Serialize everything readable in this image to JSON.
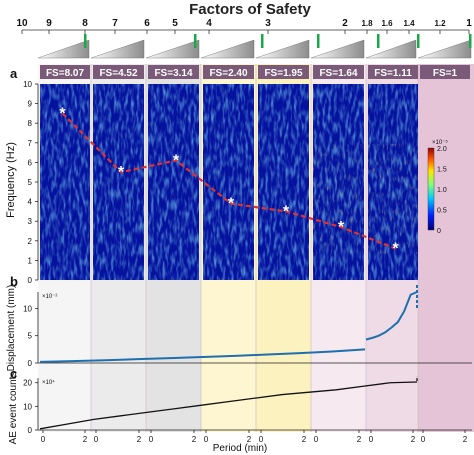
{
  "figure": {
    "title": "Factors of Safety",
    "scale_ticks": [
      "10",
      "9",
      "8",
      "7",
      "6",
      "5",
      "4",
      "3",
      "2",
      "1.8",
      "1.6",
      "1.4",
      "1.2",
      "1"
    ],
    "panel_letters": [
      "a",
      "b",
      "c"
    ],
    "shade_colors": [
      "#f5f5f5",
      "#ebebeb",
      "#e3e3e3",
      "#fdf6d0",
      "#fbf2c0",
      "#f6e9ef",
      "#efdbe6",
      "#e4c4d6"
    ],
    "label_bg": "#7a5a78",
    "trend_color": "#e0322e",
    "series_color": "#1f6fae"
  },
  "chart_data": [
    {
      "type": "heatmap",
      "panel": "a",
      "ylabel": "Frequency (Hz)",
      "ylim": [
        0,
        10
      ],
      "yticks": [
        "0",
        "1",
        "2",
        "3",
        "4",
        "5",
        "6",
        "7",
        "8",
        "9",
        "10"
      ],
      "segments": [
        "FS=8.07",
        "FS=4.52",
        "FS=3.14",
        "FS=2.40",
        "FS=1.95",
        "FS=1.64",
        "FS=1.11",
        "FS=1"
      ],
      "colorbar": {
        "ticks": [
          "0",
          "0.5",
          "1.0",
          "1.5",
          "2.0"
        ],
        "exponent": "×10⁻⁵"
      },
      "peak_frequency_trend": [
        {
          "segment": "FS=8.07",
          "frequency": 8.5
        },
        {
          "segment": "FS=4.52",
          "frequency": 5.5
        },
        {
          "segment": "FS=3.14",
          "frequency": 6.1
        },
        {
          "segment": "FS=2.40",
          "frequency": 3.9
        },
        {
          "segment": "FS=1.95",
          "frequency": 3.5
        },
        {
          "segment": "FS=1.64",
          "frequency": 2.7
        },
        {
          "segment": "FS=1.11",
          "frequency": 1.6
        }
      ]
    },
    {
      "type": "line",
      "panel": "b",
      "ylabel": "Displacement (mm)",
      "exponent": "×10⁻²",
      "ylim": [
        0,
        13
      ],
      "yticks": [
        "0",
        "5",
        "10"
      ],
      "series": [
        {
          "values": [
            0.2,
            0.35,
            0.5,
            0.7,
            0.9,
            1.1,
            1.3,
            1.55,
            1.8,
            2.1,
            2.5,
            4.3,
            4.6,
            5.0,
            5.6,
            6.5,
            7.5,
            9.5,
            12.5,
            15.5
          ]
        }
      ]
    },
    {
      "type": "line",
      "panel": "c",
      "ylabel": "AE event counts",
      "exponent": "×10⁴",
      "ylim": [
        0,
        22
      ],
      "yticks": [
        "0",
        "10",
        "20"
      ],
      "series": [
        {
          "values": [
            0.5,
            2.5,
            4.5,
            6.0,
            7.5,
            9.0,
            10.5,
            12.0,
            13.5,
            15.0,
            16.0,
            17.0,
            18.5,
            20.0,
            21.5
          ]
        }
      ]
    }
  ],
  "axis": {
    "xlabel": "Period (min)",
    "segment_ticks": [
      "0",
      "2"
    ]
  }
}
